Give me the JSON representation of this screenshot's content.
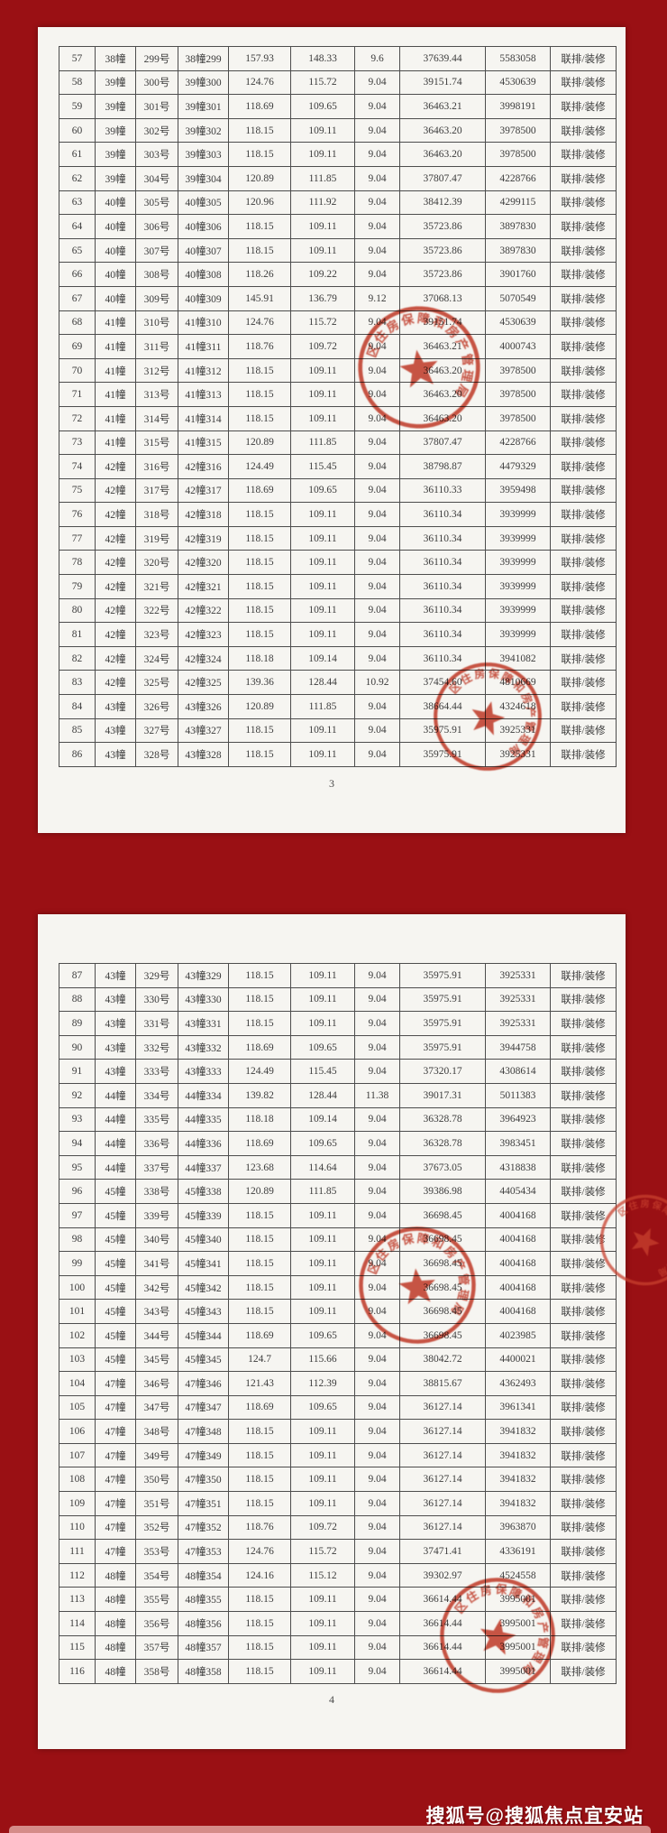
{
  "background_color": "#9a1014",
  "paper_color": "#f6f5f1",
  "watermark": "搜狐号@搜狐焦点宜安站",
  "stamp": {
    "ring_text": "区住房保障和房产管理局",
    "color": "#c8402e",
    "symbol": "five-pointed-star"
  },
  "pages": [
    {
      "page_number": "3",
      "rows": [
        [
          "57",
          "38幢",
          "299号",
          "38幢299",
          "157.93",
          "148.33",
          "9.6",
          "37639.44",
          "5583058",
          "联排/装修"
        ],
        [
          "58",
          "39幢",
          "300号",
          "39幢300",
          "124.76",
          "115.72",
          "9.04",
          "39151.74",
          "4530639",
          "联排/装修"
        ],
        [
          "59",
          "39幢",
          "301号",
          "39幢301",
          "118.69",
          "109.65",
          "9.04",
          "36463.21",
          "3998191",
          "联排/装修"
        ],
        [
          "60",
          "39幢",
          "302号",
          "39幢302",
          "118.15",
          "109.11",
          "9.04",
          "36463.20",
          "3978500",
          "联排/装修"
        ],
        [
          "61",
          "39幢",
          "303号",
          "39幢303",
          "118.15",
          "109.11",
          "9.04",
          "36463.20",
          "3978500",
          "联排/装修"
        ],
        [
          "62",
          "39幢",
          "304号",
          "39幢304",
          "120.89",
          "111.85",
          "9.04",
          "37807.47",
          "4228766",
          "联排/装修"
        ],
        [
          "63",
          "40幢",
          "305号",
          "40幢305",
          "120.96",
          "111.92",
          "9.04",
          "38412.39",
          "4299115",
          "联排/装修"
        ],
        [
          "64",
          "40幢",
          "306号",
          "40幢306",
          "118.15",
          "109.11",
          "9.04",
          "35723.86",
          "3897830",
          "联排/装修"
        ],
        [
          "65",
          "40幢",
          "307号",
          "40幢307",
          "118.15",
          "109.11",
          "9.04",
          "35723.86",
          "3897830",
          "联排/装修"
        ],
        [
          "66",
          "40幢",
          "308号",
          "40幢308",
          "118.26",
          "109.22",
          "9.04",
          "35723.86",
          "3901760",
          "联排/装修"
        ],
        [
          "67",
          "40幢",
          "309号",
          "40幢309",
          "145.91",
          "136.79",
          "9.12",
          "37068.13",
          "5070549",
          "联排/装修"
        ],
        [
          "68",
          "41幢",
          "310号",
          "41幢310",
          "124.76",
          "115.72",
          "9.04",
          "39151.74",
          "4530639",
          "联排/装修"
        ],
        [
          "69",
          "41幢",
          "311号",
          "41幢311",
          "118.76",
          "109.72",
          "9.04",
          "36463.21",
          "4000743",
          "联排/装修"
        ],
        [
          "70",
          "41幢",
          "312号",
          "41幢312",
          "118.15",
          "109.11",
          "9.04",
          "36463.20",
          "3978500",
          "联排/装修"
        ],
        [
          "71",
          "41幢",
          "313号",
          "41幢313",
          "118.15",
          "109.11",
          "9.04",
          "36463.20",
          "3978500",
          "联排/装修"
        ],
        [
          "72",
          "41幢",
          "314号",
          "41幢314",
          "118.15",
          "109.11",
          "9.04",
          "36463.20",
          "3978500",
          "联排/装修"
        ],
        [
          "73",
          "41幢",
          "315号",
          "41幢315",
          "120.89",
          "111.85",
          "9.04",
          "37807.47",
          "4228766",
          "联排/装修"
        ],
        [
          "74",
          "42幢",
          "316号",
          "42幢316",
          "124.49",
          "115.45",
          "9.04",
          "38798.87",
          "4479329",
          "联排/装修"
        ],
        [
          "75",
          "42幢",
          "317号",
          "42幢317",
          "118.69",
          "109.65",
          "9.04",
          "36110.33",
          "3959498",
          "联排/装修"
        ],
        [
          "76",
          "42幢",
          "318号",
          "42幢318",
          "118.15",
          "109.11",
          "9.04",
          "36110.34",
          "3939999",
          "联排/装修"
        ],
        [
          "77",
          "42幢",
          "319号",
          "42幢319",
          "118.15",
          "109.11",
          "9.04",
          "36110.34",
          "3939999",
          "联排/装修"
        ],
        [
          "78",
          "42幢",
          "320号",
          "42幢320",
          "118.15",
          "109.11",
          "9.04",
          "36110.34",
          "3939999",
          "联排/装修"
        ],
        [
          "79",
          "42幢",
          "321号",
          "42幢321",
          "118.15",
          "109.11",
          "9.04",
          "36110.34",
          "3939999",
          "联排/装修"
        ],
        [
          "80",
          "42幢",
          "322号",
          "42幢322",
          "118.15",
          "109.11",
          "9.04",
          "36110.34",
          "3939999",
          "联排/装修"
        ],
        [
          "81",
          "42幢",
          "323号",
          "42幢323",
          "118.15",
          "109.11",
          "9.04",
          "36110.34",
          "3939999",
          "联排/装修"
        ],
        [
          "82",
          "42幢",
          "324号",
          "42幢324",
          "118.18",
          "109.14",
          "9.04",
          "36110.34",
          "3941082",
          "联排/装修"
        ],
        [
          "83",
          "42幢",
          "325号",
          "42幢325",
          "139.36",
          "128.44",
          "10.92",
          "37454.60",
          "4810669",
          "联排/装修"
        ],
        [
          "84",
          "43幢",
          "326号",
          "43幢326",
          "120.89",
          "111.85",
          "9.04",
          "38664.44",
          "4324618",
          "联排/装修"
        ],
        [
          "85",
          "43幢",
          "327号",
          "43幢327",
          "118.15",
          "109.11",
          "9.04",
          "35975.91",
          "3925331",
          "联排/装修"
        ],
        [
          "86",
          "43幢",
          "328号",
          "43幢328",
          "118.15",
          "109.11",
          "9.04",
          "35975.91",
          "3925331",
          "联排/装修"
        ]
      ]
    },
    {
      "page_number": "4",
      "rows": [
        [
          "87",
          "43幢",
          "329号",
          "43幢329",
          "118.15",
          "109.11",
          "9.04",
          "35975.91",
          "3925331",
          "联排/装修"
        ],
        [
          "88",
          "43幢",
          "330号",
          "43幢330",
          "118.15",
          "109.11",
          "9.04",
          "35975.91",
          "3925331",
          "联排/装修"
        ],
        [
          "89",
          "43幢",
          "331号",
          "43幢331",
          "118.15",
          "109.11",
          "9.04",
          "35975.91",
          "3925331",
          "联排/装修"
        ],
        [
          "90",
          "43幢",
          "332号",
          "43幢332",
          "118.69",
          "109.65",
          "9.04",
          "35975.91",
          "3944758",
          "联排/装修"
        ],
        [
          "91",
          "43幢",
          "333号",
          "43幢333",
          "124.49",
          "115.45",
          "9.04",
          "37320.17",
          "4308614",
          "联排/装修"
        ],
        [
          "92",
          "44幢",
          "334号",
          "44幢334",
          "139.82",
          "128.44",
          "11.38",
          "39017.31",
          "5011383",
          "联排/装修"
        ],
        [
          "93",
          "44幢",
          "335号",
          "44幢335",
          "118.18",
          "109.14",
          "9.04",
          "36328.78",
          "3964923",
          "联排/装修"
        ],
        [
          "94",
          "44幢",
          "336号",
          "44幢336",
          "118.69",
          "109.65",
          "9.04",
          "36328.78",
          "3983451",
          "联排/装修"
        ],
        [
          "95",
          "44幢",
          "337号",
          "44幢337",
          "123.68",
          "114.64",
          "9.04",
          "37673.05",
          "4318838",
          "联排/装修"
        ],
        [
          "96",
          "45幢",
          "338号",
          "45幢338",
          "120.89",
          "111.85",
          "9.04",
          "39386.98",
          "4405434",
          "联排/装修"
        ],
        [
          "97",
          "45幢",
          "339号",
          "45幢339",
          "118.15",
          "109.11",
          "9.04",
          "36698.45",
          "4004168",
          "联排/装修"
        ],
        [
          "98",
          "45幢",
          "340号",
          "45幢340",
          "118.15",
          "109.11",
          "9.04",
          "36698.45",
          "4004168",
          "联排/装修"
        ],
        [
          "99",
          "45幢",
          "341号",
          "45幢341",
          "118.15",
          "109.11",
          "9.04",
          "36698.45",
          "4004168",
          "联排/装修"
        ],
        [
          "100",
          "45幢",
          "342号",
          "45幢342",
          "118.15",
          "109.11",
          "9.04",
          "36698.45",
          "4004168",
          "联排/装修"
        ],
        [
          "101",
          "45幢",
          "343号",
          "45幢343",
          "118.15",
          "109.11",
          "9.04",
          "36698.45",
          "4004168",
          "联排/装修"
        ],
        [
          "102",
          "45幢",
          "344号",
          "45幢344",
          "118.69",
          "109.65",
          "9.04",
          "36698.45",
          "4023985",
          "联排/装修"
        ],
        [
          "103",
          "45幢",
          "345号",
          "45幢345",
          "124.7",
          "115.66",
          "9.04",
          "38042.72",
          "4400021",
          "联排/装修"
        ],
        [
          "104",
          "47幢",
          "346号",
          "47幢346",
          "121.43",
          "112.39",
          "9.04",
          "38815.67",
          "4362493",
          "联排/装修"
        ],
        [
          "105",
          "47幢",
          "347号",
          "47幢347",
          "118.69",
          "109.65",
          "9.04",
          "36127.14",
          "3961341",
          "联排/装修"
        ],
        [
          "106",
          "47幢",
          "348号",
          "47幢348",
          "118.15",
          "109.11",
          "9.04",
          "36127.14",
          "3941832",
          "联排/装修"
        ],
        [
          "107",
          "47幢",
          "349号",
          "47幢349",
          "118.15",
          "109.11",
          "9.04",
          "36127.14",
          "3941832",
          "联排/装修"
        ],
        [
          "108",
          "47幢",
          "350号",
          "47幢350",
          "118.15",
          "109.11",
          "9.04",
          "36127.14",
          "3941832",
          "联排/装修"
        ],
        [
          "109",
          "47幢",
          "351号",
          "47幢351",
          "118.15",
          "109.11",
          "9.04",
          "36127.14",
          "3941832",
          "联排/装修"
        ],
        [
          "110",
          "47幢",
          "352号",
          "47幢352",
          "118.76",
          "109.72",
          "9.04",
          "36127.14",
          "3963870",
          "联排/装修"
        ],
        [
          "111",
          "47幢",
          "353号",
          "47幢353",
          "124.76",
          "115.72",
          "9.04",
          "37471.41",
          "4336191",
          "联排/装修"
        ],
        [
          "112",
          "48幢",
          "354号",
          "48幢354",
          "124.16",
          "115.12",
          "9.04",
          "39302.97",
          "4524558",
          "联排/装修"
        ],
        [
          "113",
          "48幢",
          "355号",
          "48幢355",
          "118.15",
          "109.11",
          "9.04",
          "36614.44",
          "3995001",
          "联排/装修"
        ],
        [
          "114",
          "48幢",
          "356号",
          "48幢356",
          "118.15",
          "109.11",
          "9.04",
          "36614.44",
          "3995001",
          "联排/装修"
        ],
        [
          "115",
          "48幢",
          "357号",
          "48幢357",
          "118.15",
          "109.11",
          "9.04",
          "36614.44",
          "3995001",
          "联排/装修"
        ],
        [
          "116",
          "48幢",
          "358号",
          "48幢358",
          "118.15",
          "109.11",
          "9.04",
          "36614.44",
          "3995001",
          "联排/装修"
        ]
      ]
    }
  ]
}
